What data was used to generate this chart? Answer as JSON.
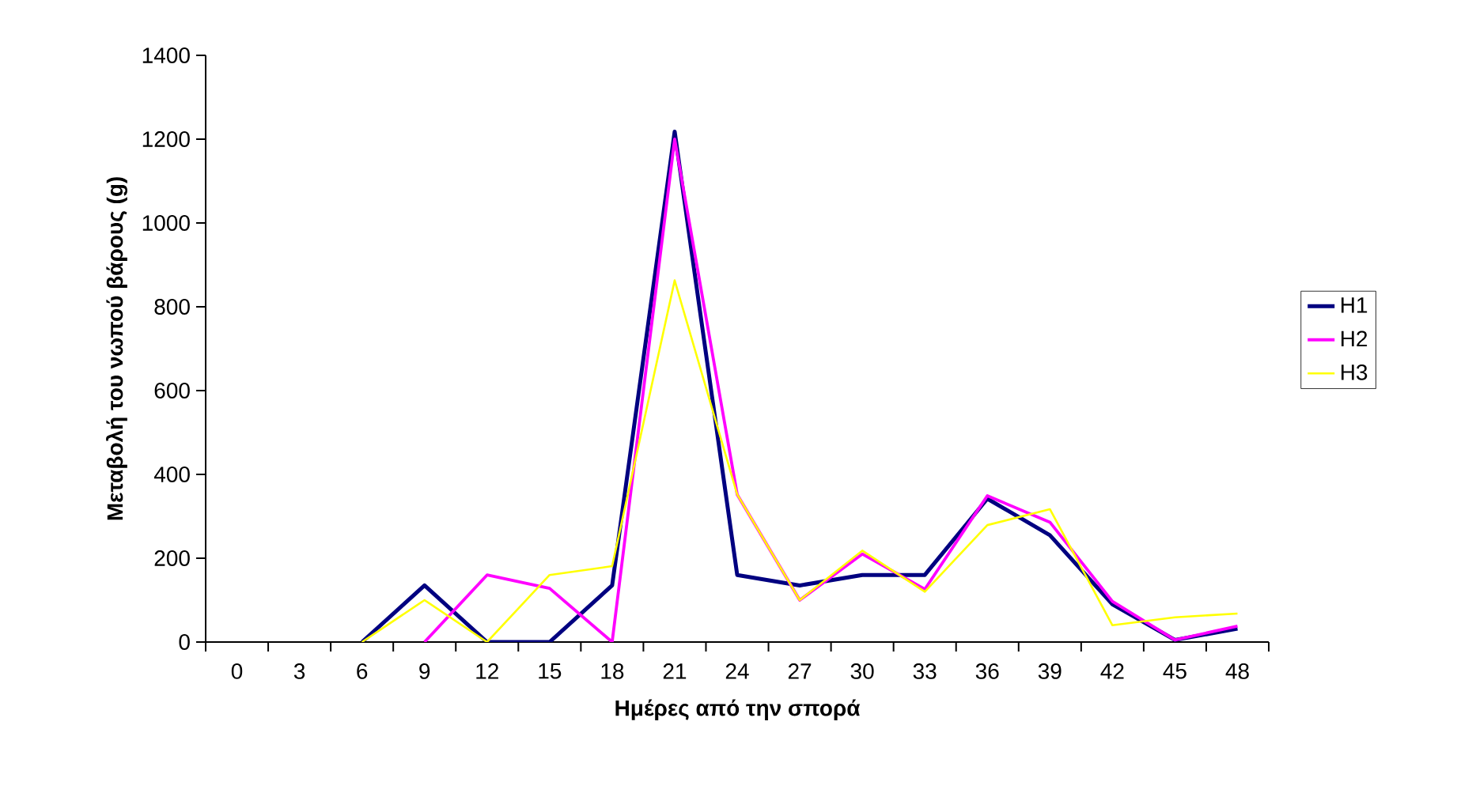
{
  "chart_data": {
    "type": "line",
    "xlabel": "Ημέρες από την σπορά",
    "ylabel": "Μεταβολή του νωπού βάρους (g)",
    "categories": [
      "0",
      "3",
      "6",
      "9",
      "12",
      "15",
      "18",
      "21",
      "24",
      "27",
      "30",
      "33",
      "36",
      "39",
      "42",
      "45",
      "48"
    ],
    "series": [
      {
        "name": "H1",
        "color": "#000080",
        "values": [
          null,
          null,
          0,
          135,
          0,
          0,
          135,
          1218,
          160,
          135,
          160,
          160,
          342,
          255,
          90,
          5,
          32
        ]
      },
      {
        "name": "H2",
        "color": "#ff00ff",
        "values": [
          null,
          null,
          null,
          0,
          160,
          128,
          0,
          1200,
          352,
          100,
          210,
          126,
          349,
          286,
          97,
          5,
          38
        ]
      },
      {
        "name": "H3",
        "color": "#ffff00",
        "values": [
          null,
          null,
          0,
          100,
          0,
          160,
          181,
          863,
          352,
          100,
          218,
          120,
          279,
          317,
          40,
          59,
          68
        ]
      }
    ],
    "ylim": [
      0,
      1400
    ],
    "yticks": [
      0,
      200,
      400,
      600,
      800,
      1000,
      1200,
      1400
    ],
    "legend": "right",
    "marker": "none",
    "line_style": "solid"
  }
}
